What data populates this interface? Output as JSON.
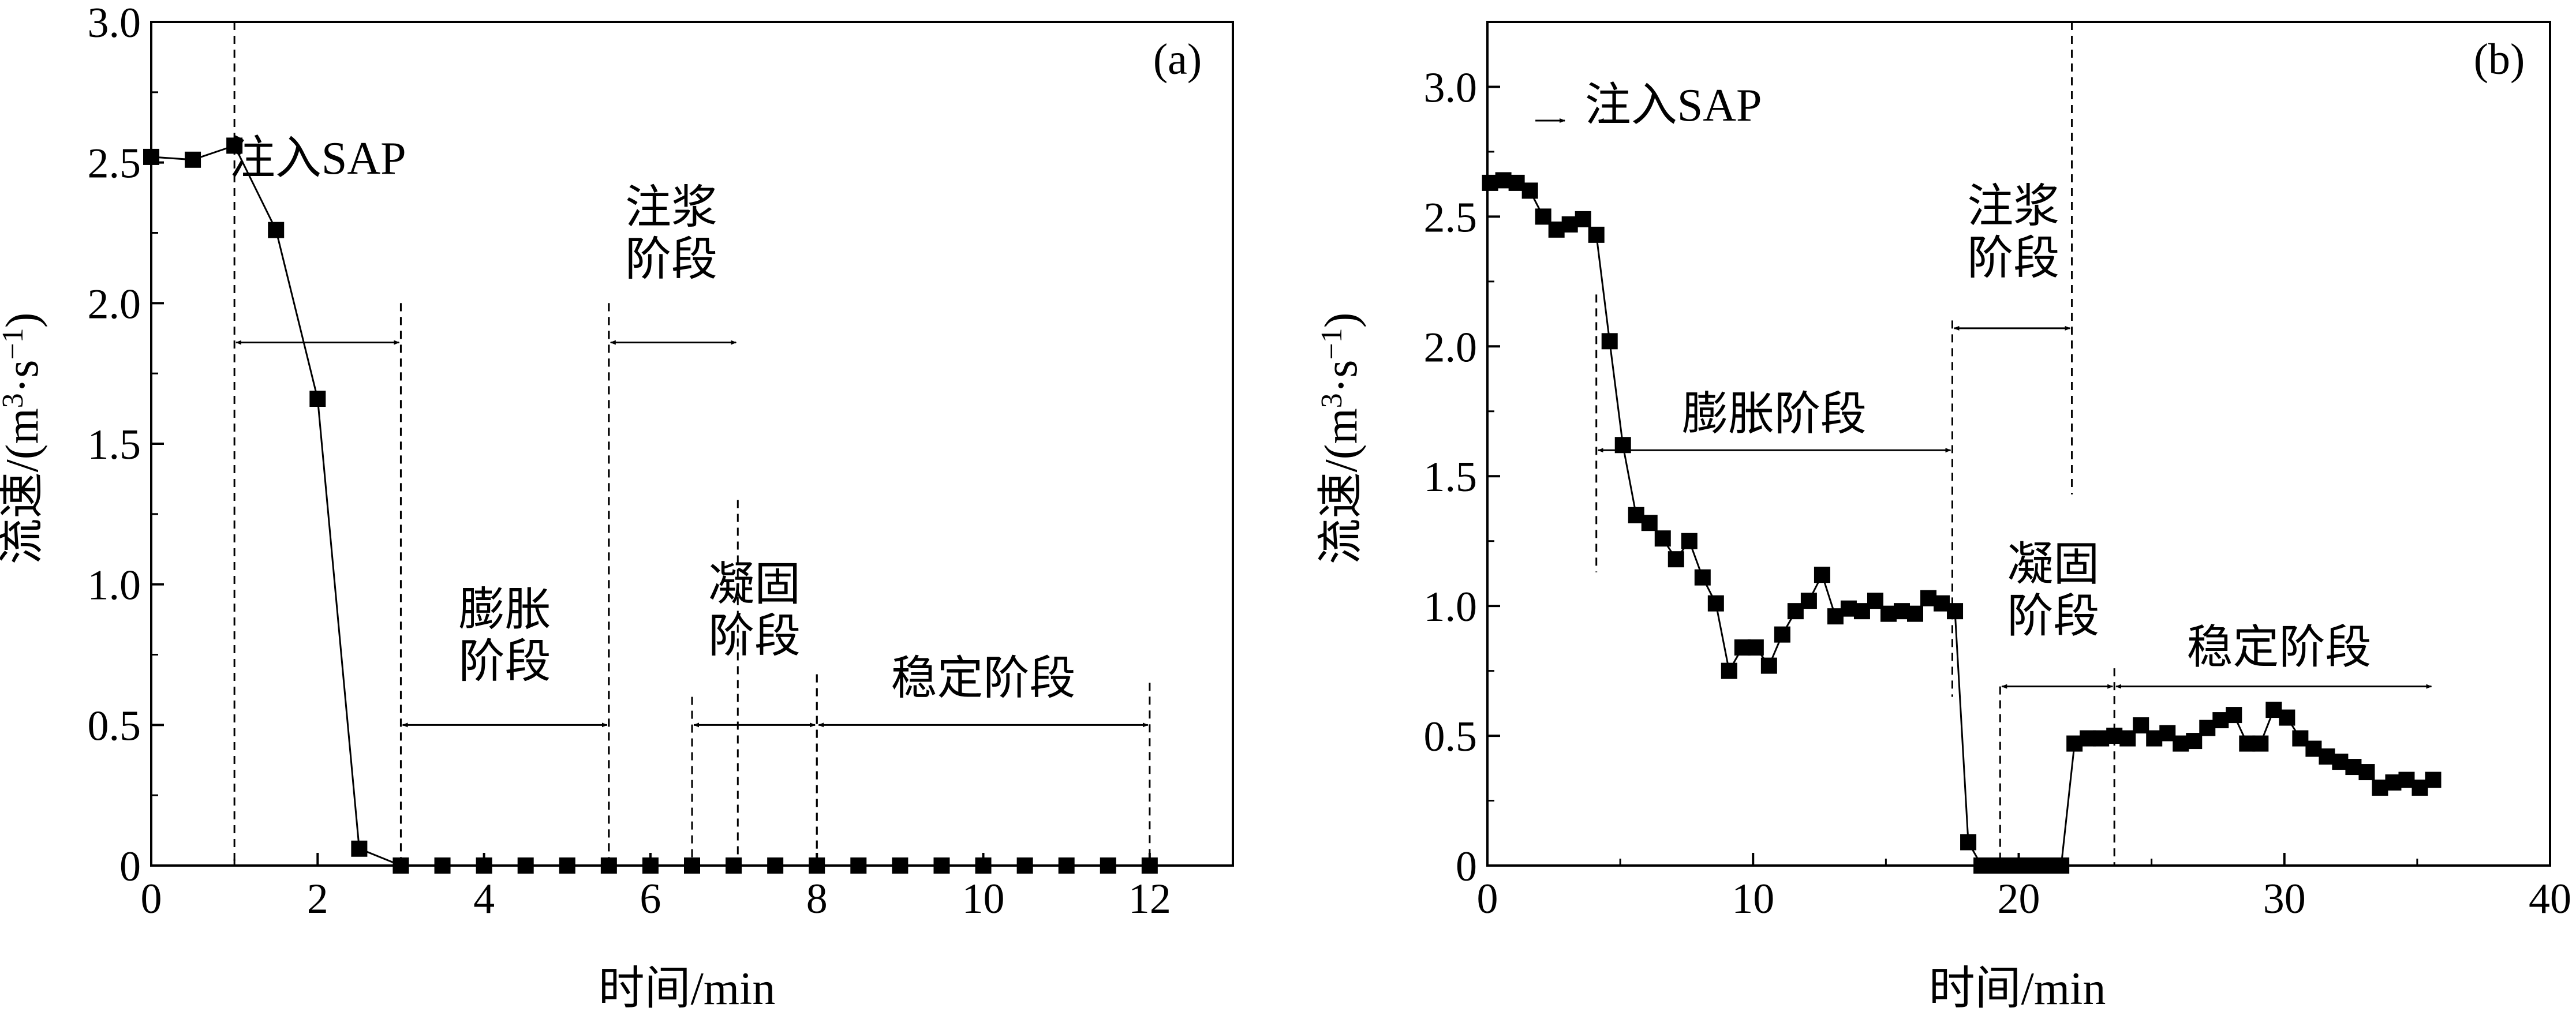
{
  "chart_data": [
    {
      "type": "line",
      "panel_label": "(a)",
      "xlabel": "时间/min",
      "ylabel_main": "流速/(m",
      "ylabel_sup1": "3",
      "ylabel_mid": "·s",
      "ylabel_sup2": "−1",
      "ylabel_end": ")",
      "xlim": [
        0,
        13
      ],
      "ylim": [
        0,
        3.0
      ],
      "xticks": [
        0,
        2,
        4,
        6,
        8,
        10,
        12
      ],
      "xtick_labels": [
        "0",
        "2",
        "4",
        "6",
        "8",
        "10",
        "12"
      ],
      "yticks": [
        0,
        0.5,
        1.0,
        1.5,
        2.0,
        2.5,
        3.0
      ],
      "ytick_labels": [
        "0",
        "0.5",
        "1.0",
        "1.5",
        "2.0",
        "2.5",
        "3.0"
      ],
      "grid": false,
      "legend": "none",
      "markers": "filled-square",
      "series": [
        {
          "x": [
            0,
            0.5,
            1,
            1.5,
            2,
            2.5,
            3,
            3.5,
            4,
            4.5,
            5,
            5.5,
            6,
            6.5,
            7,
            7.5,
            8,
            8.5,
            9,
            9.5,
            10,
            10.5,
            11,
            11.5,
            12
          ],
          "y": [
            2.52,
            2.51,
            2.56,
            2.26,
            1.66,
            0.06,
            0,
            0,
            0,
            0,
            0,
            0,
            0,
            0,
            0,
            0,
            0,
            0,
            0,
            0,
            0,
            0,
            0,
            0,
            0
          ]
        }
      ],
      "annotations": [
        {
          "lines": [
            "注入SAP"
          ],
          "x": 2.0,
          "y": 2.46,
          "x0": 1.0,
          "x1": 3.0,
          "arrow_y": 1.86,
          "dash_top": [
            3.0,
            2.0
          ]
        },
        {
          "lines": [
            "注浆",
            "阶段"
          ],
          "x": 6.25,
          "y": 2.1,
          "x0": 5.5,
          "x1": 7.05,
          "arrow_y": 1.86,
          "dash_top": [
            2.0,
            1.3
          ]
        },
        {
          "lines": [
            "膨胀",
            "阶段"
          ],
          "x": 4.25,
          "y": 0.67,
          "x0": 3.0,
          "x1": 5.5,
          "arrow_y": 0.5,
          "dash_top": [
            2.0,
            2.0
          ]
        },
        {
          "lines": [
            "凝固",
            "阶段"
          ],
          "x": 7.25,
          "y": 0.76,
          "x0": 6.5,
          "x1": 8.0,
          "arrow_y": 0.5,
          "dash_top": [
            0.6,
            0.68
          ]
        },
        {
          "lines": [
            "稳定阶段"
          ],
          "x": 10.0,
          "y": 0.61,
          "x0": 8.0,
          "x1": 12.0,
          "arrow_y": 0.5,
          "dash_top": [
            0.68,
            0.65
          ]
        }
      ]
    },
    {
      "type": "line",
      "panel_label": "(b)",
      "xlabel": "时间/min",
      "ylabel_main": "流速/(m",
      "ylabel_sup1": "3",
      "ylabel_mid": "·s",
      "ylabel_sup2": "−1",
      "ylabel_end": ")",
      "xlim": [
        0,
        40
      ],
      "ylim": [
        0,
        3.25
      ],
      "xticks": [
        0,
        10,
        20,
        30,
        40
      ],
      "xtick_labels": [
        "0",
        "10",
        "20",
        "30",
        "40"
      ],
      "yticks": [
        0,
        0.5,
        1.0,
        1.5,
        2.0,
        2.5,
        3.0
      ],
      "ytick_labels": [
        "0",
        "0.5",
        "1.0",
        "1.5",
        "2.0",
        "2.5",
        "3.0"
      ],
      "grid": false,
      "legend": "none",
      "markers": "filled-square",
      "series": [
        {
          "x": [
            0.1,
            0.6,
            1.1,
            1.6,
            2.1,
            2.6,
            3.1,
            3.6,
            4.1,
            4.6,
            5.1,
            5.6,
            6.1,
            6.6,
            7.1,
            7.6,
            8.1,
            8.6,
            9.1,
            9.6,
            10.1,
            10.6,
            11.1,
            11.6,
            12.1,
            12.6,
            13.1,
            13.6,
            14.1,
            14.6,
            15.1,
            15.6,
            16.1,
            16.6,
            17.1,
            17.6,
            18.1,
            18.6,
            19.1,
            19.6,
            20.1,
            20.6,
            21.1,
            21.6,
            22.1,
            22.6,
            23.1,
            23.6,
            24.1,
            24.6,
            25.1,
            25.6,
            26.1,
            26.6,
            27.1,
            27.6,
            28.1,
            28.6,
            29.1,
            29.6,
            30.1,
            30.6,
            31.1,
            31.6,
            32.1,
            32.6,
            33.1,
            33.6,
            34.1,
            34.6,
            35.1,
            35.6
          ],
          "y": [
            2.63,
            2.64,
            2.63,
            2.6,
            2.5,
            2.45,
            2.47,
            2.49,
            2.43,
            2.02,
            1.62,
            1.35,
            1.32,
            1.26,
            1.18,
            1.25,
            1.11,
            1.01,
            0.75,
            0.84,
            0.84,
            0.77,
            0.89,
            0.98,
            1.02,
            1.12,
            0.96,
            0.99,
            0.98,
            1.02,
            0.97,
            0.98,
            0.97,
            1.03,
            1.01,
            0.98,
            0.09,
            0,
            0,
            0,
            0,
            0,
            0,
            0,
            0.47,
            0.49,
            0.49,
            0.5,
            0.49,
            0.54,
            0.49,
            0.51,
            0.47,
            0.48,
            0.53,
            0.56,
            0.58,
            0.47,
            0.47,
            0.6,
            0.57,
            0.49,
            0.45,
            0.42,
            0.4,
            0.38,
            0.36,
            0.3,
            0.32,
            0.33,
            0.3,
            0.33
          ]
        }
      ],
      "annotations": [
        {
          "lines": [
            "注入SAP"
          ],
          "x": 7.0,
          "y": 2.87,
          "x0": 3.0,
          "x1": 4.1,
          "arrow_y": 2.87,
          "arrow_style": "inward",
          "dash_top": [
            3.25,
            2.2
          ],
          "dash_bottom": [
            3.25,
            1.13
          ]
        },
        {
          "lines": [
            "注浆",
            "阶段"
          ],
          "x": 19.8,
          "y": 2.28,
          "x0": 17.5,
          "x1": 22.0,
          "arrow_y": 2.07,
          "dash_top": [
            2.1,
            3.25
          ],
          "dash_bottom": [
            0.65,
            1.43
          ]
        },
        {
          "lines": [
            "膨胀阶段"
          ],
          "x": 10.8,
          "y": 1.68,
          "x0": 4.1,
          "x1": 17.5,
          "arrow_y": 1.6,
          "dash_top": null
        },
        {
          "lines": [
            "凝固",
            "阶段"
          ],
          "x": 21.3,
          "y": 0.9,
          "x0": 19.3,
          "x1": 23.6,
          "arrow_y": 0.69,
          "dash_top": [
            0.69,
            0.0
          ]
        },
        {
          "lines": [
            "稳定阶段"
          ],
          "x": 29.8,
          "y": 0.78,
          "x0": 23.6,
          "x1": 35.6,
          "arrow_y": 0.69,
          "dash_top": [
            0.76,
            0.0
          ],
          "dash_right": [
            0.76,
            0.08
          ]
        }
      ]
    }
  ]
}
